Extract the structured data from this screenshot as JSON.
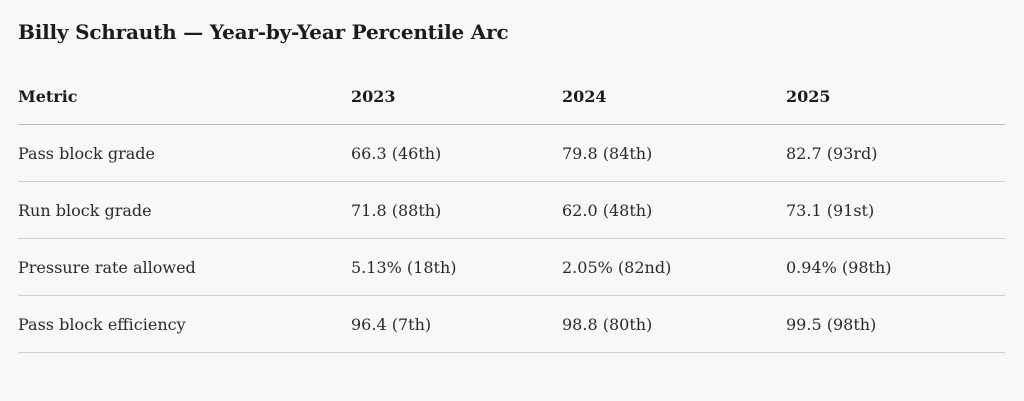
{
  "title": "Billy Schrauth — Year-by-Year Percentile Arc",
  "table": {
    "headers": [
      "Metric",
      "2023",
      "2024",
      "2025"
    ],
    "rows": [
      [
        "Pass block grade",
        "66.3 (46th)",
        "79.8 (84th)",
        "82.7 (93rd)"
      ],
      [
        "Run block grade",
        "71.8 (88th)",
        "62.0 (48th)",
        "73.1 (91st)"
      ],
      [
        "Pressure rate allowed",
        "5.13% (18th)",
        "2.05% (82nd)",
        "0.94% (98th)"
      ],
      [
        "Pass block efficiency",
        "96.4 (7th)",
        "98.8 (80th)",
        "99.5 (98th)"
      ]
    ]
  }
}
